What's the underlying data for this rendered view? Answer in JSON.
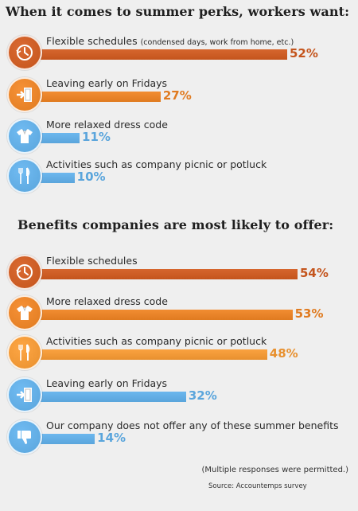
{
  "chart_data": [
    {
      "type": "bar",
      "title": "When it comes to summer perks, workers want:",
      "unit": "%",
      "categories": [
        "Flexible schedules",
        "Leaving early on Fridays",
        "More relaxed dress code",
        "Activities such as company picnic or potluck"
      ],
      "category_notes": [
        "(condensed days, work from home, etc.)",
        "",
        "",
        ""
      ],
      "values": [
        52,
        27,
        11,
        10
      ],
      "value_labels": [
        "52%",
        "27%",
        "11%",
        "10%"
      ],
      "icons": [
        "clock-icon",
        "exit-door-icon",
        "shirt-icon",
        "utensils-icon"
      ],
      "colors": [
        "#c4541c",
        "#e07b20",
        "#5aa5dc",
        "#5aa5dc"
      ]
    },
    {
      "type": "bar",
      "title": "Benefits companies are most likely to offer:",
      "unit": "%",
      "categories": [
        "Flexible schedules",
        "More relaxed dress code",
        "Activities such as company picnic or potluck",
        "Leaving early on Fridays",
        "Our company does not offer any of these summer benefits"
      ],
      "category_notes": [
        "",
        "",
        "",
        "",
        ""
      ],
      "values": [
        54,
        53,
        48,
        32,
        14
      ],
      "value_labels": [
        "54%",
        "53%",
        "48%",
        "32%",
        "14%"
      ],
      "icons": [
        "clock-icon",
        "shirt-icon",
        "utensils-icon",
        "exit-door-icon",
        "thumbs-down-icon"
      ],
      "colors": [
        "#c4541c",
        "#e07b20",
        "#e8902e",
        "#5aa5dc",
        "#5aa5dc"
      ]
    }
  ],
  "footnote": "(Multiple responses were permitted.)",
  "source": "Source: Accountemps survey"
}
